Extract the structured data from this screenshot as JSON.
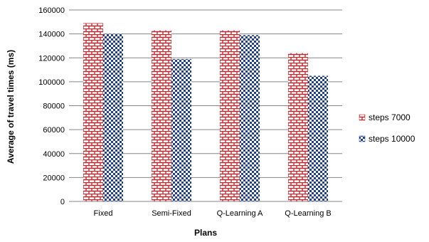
{
  "chart_data": {
    "type": "bar",
    "title": "",
    "xlabel": "Plans",
    "ylabel": "Average of travel times (ms)",
    "categories": [
      "Fixed",
      "Semi-Fixed",
      "Q-Learning A",
      "Q-Learning B"
    ],
    "series": [
      {
        "name": "steps 7000",
        "values": [
          149000,
          143000,
          143000,
          124000
        ],
        "color": "#c0282d",
        "pattern": "brick"
      },
      {
        "name": "steps 10000",
        "values": [
          140000,
          119000,
          139000,
          105000
        ],
        "color": "#1f3f8f",
        "pattern": "checker"
      }
    ],
    "ylim": [
      0,
      160000
    ],
    "yticks": [
      0,
      20000,
      40000,
      60000,
      80000,
      100000,
      120000,
      140000,
      160000
    ],
    "grid": true,
    "legend_position": "right"
  }
}
